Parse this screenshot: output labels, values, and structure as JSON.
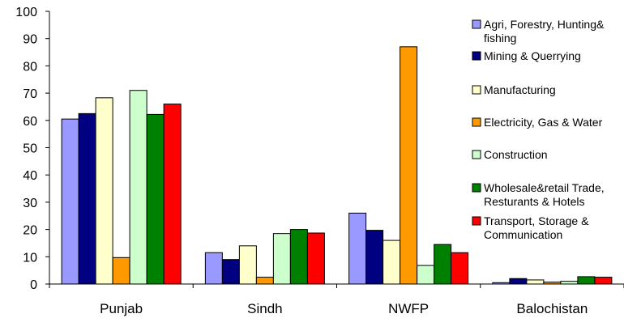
{
  "chart_data": {
    "type": "bar",
    "categories": [
      "Punjab",
      "Sindh",
      "NWFP",
      "Balochistan"
    ],
    "ylim": [
      0,
      100
    ],
    "yticks": [
      0,
      10,
      20,
      30,
      40,
      50,
      60,
      70,
      80,
      90,
      100
    ],
    "grid": false,
    "legend_position": "right",
    "series": [
      {
        "name": "Agri, Forestry, Hunting& fishing",
        "color": "#9999ff",
        "values": [
          60.5,
          11.5,
          26.0,
          0.5
        ]
      },
      {
        "name": "Mining & Querrying",
        "color": "#000080",
        "values": [
          62.5,
          9.0,
          19.7,
          2.0
        ]
      },
      {
        "name": "Manufacturing",
        "color": "#ffffcc",
        "values": [
          68.3,
          14.0,
          16.0,
          1.5
        ]
      },
      {
        "name": "Electricity, Gas & Water",
        "color": "#ff9900",
        "values": [
          9.7,
          2.5,
          87.0,
          0.7
        ]
      },
      {
        "name": "Construction",
        "color": "#ccffcc",
        "values": [
          71.0,
          18.5,
          6.8,
          1.0
        ]
      },
      {
        "name": "Wholesale&retail Trade, Resturants & Hotels",
        "color": "#008000",
        "values": [
          62.2,
          20.0,
          14.5,
          2.7
        ]
      },
      {
        "name": "Transport, Storage & Communication",
        "color": "#ff0000",
        "values": [
          66.0,
          18.7,
          11.5,
          2.5
        ]
      }
    ],
    "legend_lines": [
      [
        "Agri, Forestry, Hunting&",
        "fishing"
      ],
      [
        "Mining & Querrying"
      ],
      [
        "Manufacturing"
      ],
      [
        "Electricity, Gas & Water"
      ],
      [
        "Construction"
      ],
      [
        "Wholesale&retail Trade,",
        "Resturants & Hotels"
      ],
      [
        "Transport, Storage &",
        "Communication"
      ]
    ]
  }
}
